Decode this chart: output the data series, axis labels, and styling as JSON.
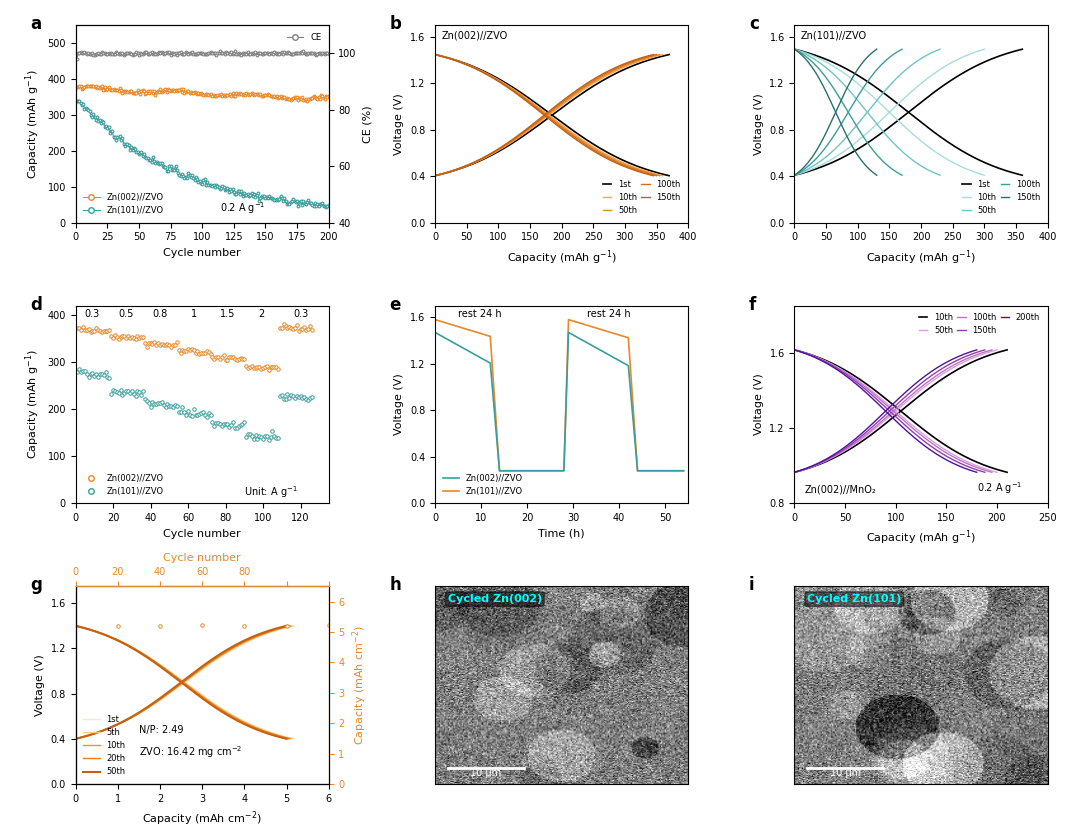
{
  "panel_labels": [
    "a",
    "b",
    "c",
    "d",
    "e",
    "f",
    "g",
    "h",
    "i"
  ],
  "colors": {
    "orange": "#E8882A",
    "teal": "#3A9E9C",
    "gray": "#808080",
    "black": "#000000",
    "orange_10th": "#E8882A",
    "orange_50th": "#F0A050",
    "orange_100th": "#D07020",
    "orange_150th": "#C06010",
    "teal_10th": "#7ECECE",
    "teal_50th": "#5AB8B8",
    "teal_100th": "#3A9E9C",
    "teal_150th": "#2A8080",
    "purple_50th": "#C090D0",
    "purple_100th": "#A060B0",
    "purple_150th": "#8040A0",
    "purple_200th": "#6020A0",
    "purple_dark": "#400080"
  },
  "figsize": [
    10.8,
    8.34
  ],
  "dpi": 100
}
